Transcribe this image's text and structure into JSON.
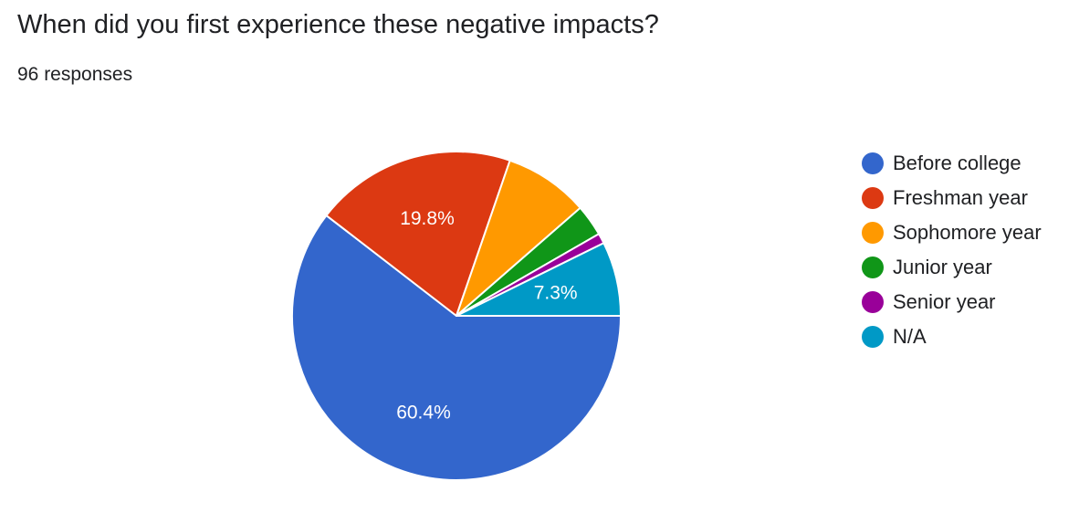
{
  "header": {
    "title": "When did you first experience these negative impacts?",
    "responses": "96 responses"
  },
  "chart_data": {
    "type": "pie",
    "title": "When did you first experience these negative impacts?",
    "total_responses": 96,
    "legend_position": "right",
    "start_angle_degrees_clockwise_from_top": 90,
    "slices": [
      {
        "label": "Before college",
        "value": 60.4,
        "color": "#3366cc",
        "data_label": "60.4%"
      },
      {
        "label": "Freshman year",
        "value": 19.8,
        "color": "#dc3912",
        "data_label": "19.8%"
      },
      {
        "label": "Sophomore year",
        "value": 8.3,
        "color": "#ff9900",
        "data_label": ""
      },
      {
        "label": "Junior year",
        "value": 3.1,
        "color": "#109618",
        "data_label": ""
      },
      {
        "label": "Senior year",
        "value": 1.0,
        "color": "#990099",
        "data_label": ""
      },
      {
        "label": "N/A",
        "value": 7.3,
        "color": "#0099c6",
        "data_label": "7.3%"
      }
    ]
  }
}
